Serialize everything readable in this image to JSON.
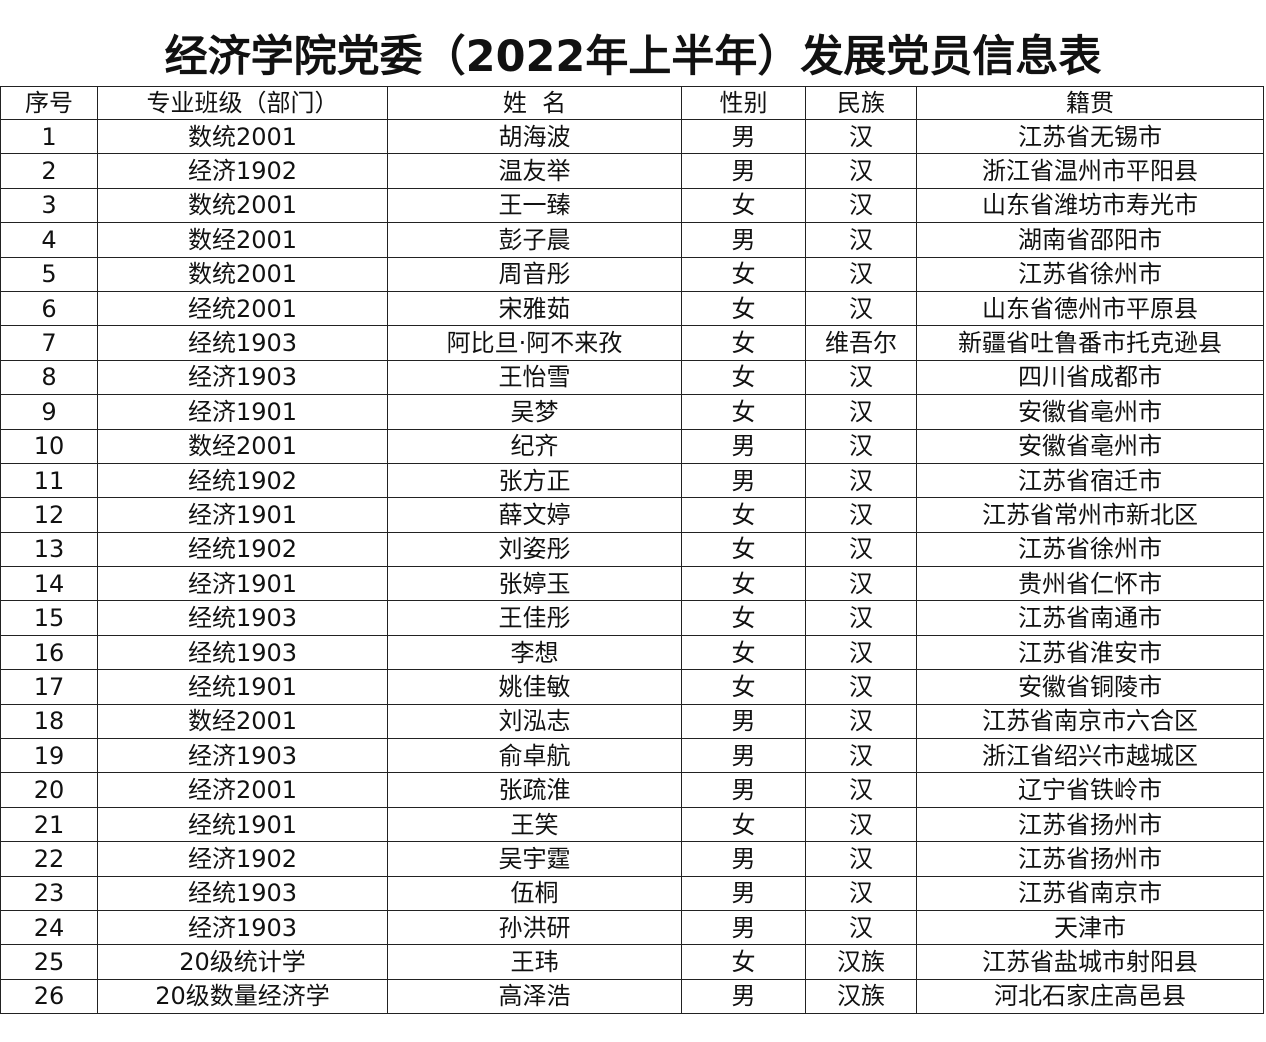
{
  "title": "经济学院党委（2022年上半年）发展党员信息表",
  "headers": [
    "序号",
    "专业班级（部门）",
    "姓  名",
    "性别",
    "民族",
    "籍贯"
  ],
  "rows": [
    [
      "1",
      "数统2001",
      "胡海波",
      "男",
      "汉",
      "江苏省无锡市"
    ],
    [
      "2",
      "经济1902",
      "温友举",
      "男",
      "汉",
      "浙江省温州市平阳县"
    ],
    [
      "3",
      "数统2001",
      "王一臻",
      "女",
      "汉",
      "山东省潍坊市寿光市"
    ],
    [
      "4",
      "数经2001",
      "彭子晨",
      "男",
      "汉",
      "湖南省邵阳市"
    ],
    [
      "5",
      "数统2001",
      "周音彤",
      "女",
      "汉",
      "江苏省徐州市"
    ],
    [
      "6",
      "经统2001",
      "宋雅茹",
      "女",
      "汉",
      "山东省德州市平原县"
    ],
    [
      "7",
      "经统1903",
      "阿比旦·阿不来孜",
      "女",
      "维吾尔",
      "新疆省吐鲁番市托克逊县"
    ],
    [
      "8",
      "经济1903",
      "王怡雪",
      "女",
      "汉",
      "四川省成都市"
    ],
    [
      "9",
      "经济1901",
      "吴梦",
      "女",
      "汉",
      "安徽省亳州市"
    ],
    [
      "10",
      "数经2001",
      "纪齐",
      "男",
      "汉",
      "安徽省亳州市"
    ],
    [
      "11",
      "经统1902",
      "张方正",
      "男",
      "汉",
      "江苏省宿迁市"
    ],
    [
      "12",
      "经济1901",
      "薛文婷",
      "女",
      "汉",
      "江苏省常州市新北区"
    ],
    [
      "13",
      "经统1902",
      "刘姿彤",
      "女",
      "汉",
      "江苏省徐州市"
    ],
    [
      "14",
      "经济1901",
      "张婷玉",
      "女",
      "汉",
      "贵州省仁怀市"
    ],
    [
      "15",
      "经统1903",
      "王佳彤",
      "女",
      "汉",
      "江苏省南通市"
    ],
    [
      "16",
      "经统1903",
      "李想",
      "女",
      "汉",
      "江苏省淮安市"
    ],
    [
      "17",
      "经统1901",
      "姚佳敏",
      "女",
      "汉",
      "安徽省铜陵市"
    ],
    [
      "18",
      "数经2001",
      "刘泓志",
      "男",
      "汉",
      "江苏省南京市六合区"
    ],
    [
      "19",
      "经济1903",
      "俞卓航",
      "男",
      "汉",
      "浙江省绍兴市越城区"
    ],
    [
      "20",
      "经济2001",
      "张疏淮",
      "男",
      "汉",
      "辽宁省铁岭市"
    ],
    [
      "21",
      "经统1901",
      "王笑",
      "女",
      "汉",
      "江苏省扬州市"
    ],
    [
      "22",
      "经济1902",
      "吴宇霆",
      "男",
      "汉",
      "江苏省扬州市"
    ],
    [
      "23",
      "经统1903",
      "伍桐",
      "男",
      "汉",
      "江苏省南京市"
    ],
    [
      "24",
      "经济1903",
      "孙洪研",
      "男",
      "汉",
      "天津市"
    ],
    [
      "25",
      "20级统计学",
      "王玮",
      "女",
      "汉族",
      "江苏省盐城市射阳县"
    ],
    [
      "26",
      "20级数量经济学",
      "高泽浩",
      "男",
      "汉族",
      "河北石家庄高邑县"
    ]
  ]
}
